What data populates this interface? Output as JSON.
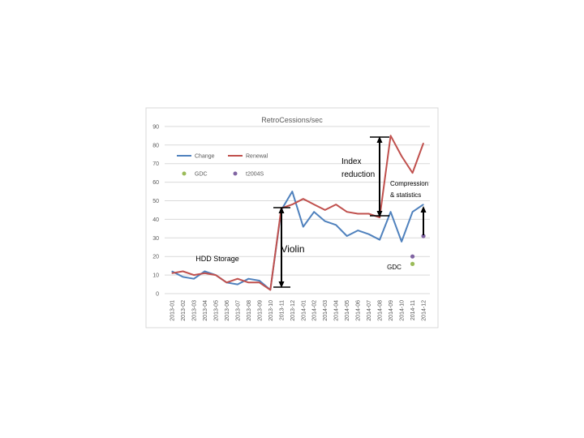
{
  "chart_data": {
    "type": "line",
    "title": "RetroCessions/sec",
    "xlabel": "",
    "ylabel": "",
    "ylim": [
      0,
      90
    ],
    "yticks": [
      0,
      10,
      20,
      30,
      40,
      50,
      60,
      70,
      80,
      90
    ],
    "grid": true,
    "categories": [
      "2013-01",
      "2013-02",
      "2013-03",
      "2013-04",
      "2013-05",
      "2013-06",
      "2013-07",
      "2013-08",
      "2013-09",
      "2013-10",
      "2013-11",
      "2013-12",
      "2014-01",
      "2014-02",
      "2014-03",
      "2014-04",
      "2014-05",
      "2014-06",
      "2014-07",
      "2014-08",
      "2014-09",
      "2014-10",
      "2014-11",
      "2014-12"
    ],
    "series": [
      {
        "name": "Change",
        "type": "line",
        "color": "#4f81bd",
        "values": [
          12,
          9,
          8,
          12,
          10,
          6,
          5,
          8,
          7,
          2,
          45,
          55,
          36,
          44,
          39,
          37,
          31,
          34,
          32,
          29,
          44,
          28,
          44,
          48
        ]
      },
      {
        "name": "Renewal",
        "type": "line",
        "color": "#c0504d",
        "values": [
          11,
          12,
          10,
          11,
          10,
          6,
          8,
          6,
          6,
          2,
          46,
          48,
          51,
          48,
          45,
          48,
          44,
          43,
          43,
          41,
          85,
          74,
          65,
          81
        ]
      },
      {
        "name": "GDC",
        "type": "scatter",
        "color": "#9bbb59",
        "points": [
          {
            "x": "2014-11",
            "y": 16
          }
        ]
      },
      {
        "name": "t2004S",
        "type": "scatter",
        "color": "#8064a2",
        "points": [
          {
            "x": "2014-11",
            "y": 20
          },
          {
            "x": "2014-12",
            "y": 31
          }
        ]
      }
    ],
    "legend": {
      "placement": "top-left",
      "items": [
        {
          "label": "Change",
          "marker": "line",
          "color": "#4f81bd"
        },
        {
          "label": "Renewal",
          "marker": "line",
          "color": "#c0504d"
        },
        {
          "label": "GDC",
          "marker": "dot",
          "color": "#9bbb59"
        },
        {
          "label": "t2004S",
          "marker": "dot",
          "color": "#8064a2"
        }
      ]
    },
    "annotations": [
      {
        "id": "hdd",
        "text": "HDD Storage"
      },
      {
        "id": "violin",
        "text": "Violin"
      },
      {
        "id": "index-line1",
        "text": "Index"
      },
      {
        "id": "index-line2",
        "text": "reduction"
      },
      {
        "id": "compression-line1",
        "text": "Compression"
      },
      {
        "id": "compression-line2",
        "text": "& statistics"
      },
      {
        "id": "gdc",
        "text": "GDC"
      }
    ]
  }
}
